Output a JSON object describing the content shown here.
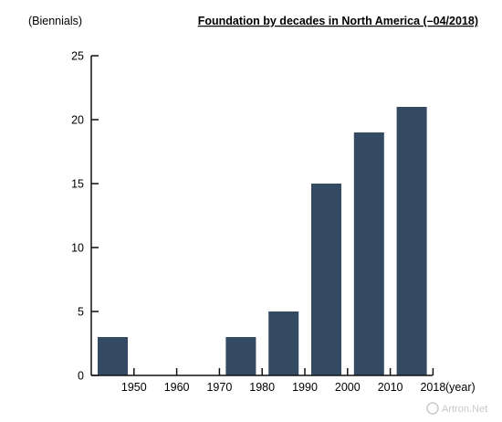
{
  "chart_data": {
    "type": "bar",
    "title": "Foundation by decades in North America (–04/2018)",
    "ylabel": "(Biennials)",
    "xlabel": "(year)",
    "ylim": [
      0,
      25
    ],
    "yticks": [
      0,
      5,
      10,
      15,
      20,
      25
    ],
    "xticks": [
      "1950",
      "1960",
      "1970",
      "1980",
      "1990",
      "2000",
      "2010",
      "2018"
    ],
    "categories": [
      "1940–1950",
      "1950–1960",
      "1960–1970",
      "1970–1980",
      "1980–1990",
      "1990–2000",
      "2000–2010",
      "2010–2018"
    ],
    "values": [
      3,
      0,
      0,
      3,
      5,
      15,
      19,
      21
    ],
    "bar_color": "#344a63",
    "grid": false
  },
  "watermark": "Artron.Net"
}
